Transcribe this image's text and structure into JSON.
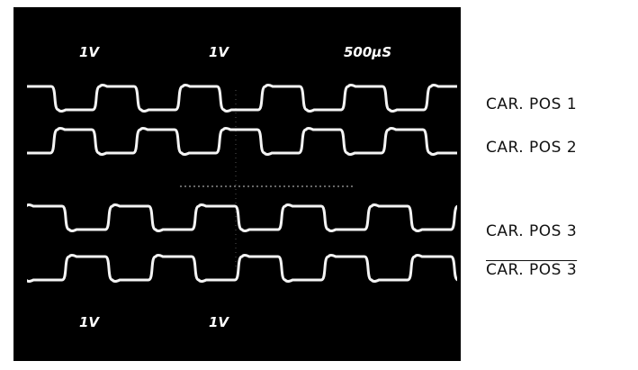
{
  "screen": {
    "top_labels": [
      "1V",
      "1V",
      "500µS"
    ],
    "bottom_labels": [
      "1V",
      "1V"
    ]
  },
  "channels": [
    "CAR. POS 1",
    "CAR. POS 2",
    "CAR. POS 3",
    "CAR. POS 3"
  ]
}
